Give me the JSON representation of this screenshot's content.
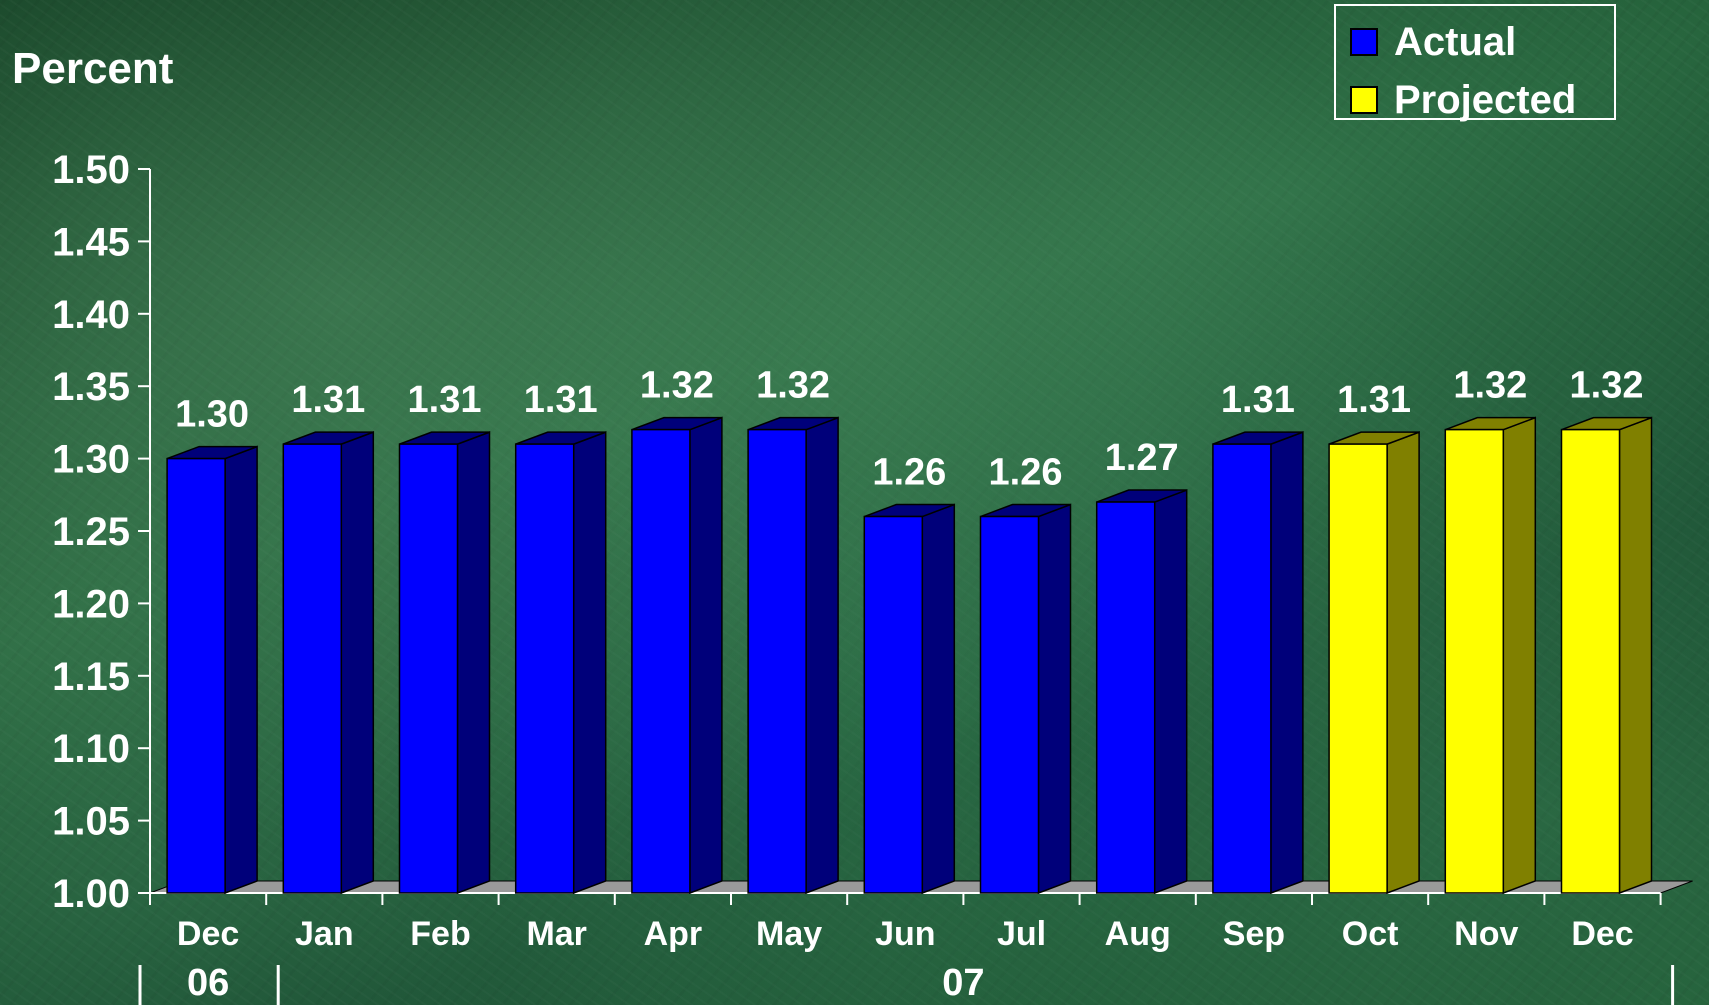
{
  "chart_data": {
    "type": "bar",
    "ylabel": "Percent",
    "ylim": [
      1.0,
      1.5
    ],
    "yticks": [
      "1.00",
      "1.05",
      "1.10",
      "1.15",
      "1.20",
      "1.25",
      "1.30",
      "1.35",
      "1.40",
      "1.45",
      "1.50"
    ],
    "categories": [
      "Dec",
      "Jan",
      "Feb",
      "Mar",
      "Apr",
      "May",
      "Jun",
      "Jul",
      "Aug",
      "Sep",
      "Oct",
      "Nov",
      "Dec"
    ],
    "year_labels": [
      {
        "label": "06",
        "start": 0,
        "end": 0
      },
      {
        "label": "07",
        "start": 1,
        "end": 12
      }
    ],
    "series": [
      {
        "name": "Actual",
        "color": "#0000ff",
        "side_color": "#00007a",
        "values": [
          1.3,
          1.31,
          1.31,
          1.31,
          1.32,
          1.32,
          1.26,
          1.26,
          1.27,
          1.31,
          null,
          null,
          null
        ]
      },
      {
        "name": "Projected",
        "color": "#ffff00",
        "side_color": "#808000",
        "values": [
          null,
          null,
          null,
          null,
          null,
          null,
          null,
          null,
          null,
          null,
          1.31,
          1.32,
          1.32
        ]
      }
    ],
    "data_labels": [
      "1.30",
      "1.31",
      "1.31",
      "1.31",
      "1.32",
      "1.32",
      "1.26",
      "1.26",
      "1.27",
      "1.31",
      "1.31",
      "1.32",
      "1.32"
    ],
    "legend_position": "top-right",
    "grid": false
  }
}
